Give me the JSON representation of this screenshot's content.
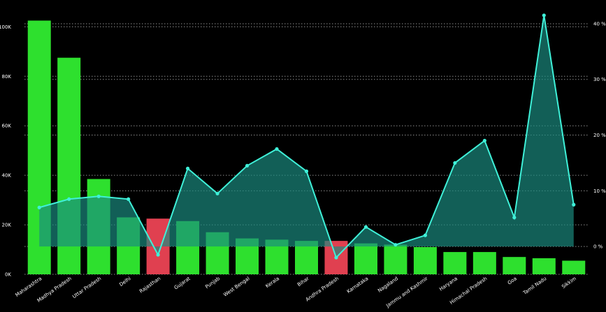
{
  "chart_data": {
    "type": "bar",
    "categories": [
      "Maharashtra",
      "Madhya Pradesh",
      "Uttar Pradesh",
      "Delhi",
      "Rajasthan",
      "Gujarat",
      "Punjab",
      "West Bengal",
      "Kerala",
      "Bihar",
      "Andhra Pradesh",
      "Karnataka",
      "Nagaland",
      "Jammu and Kashmir",
      "Haryana",
      "Himachal Pradesh",
      "Goa",
      "Tamil Nadu",
      "Sikkim"
    ],
    "series": [
      {
        "axis": "left",
        "type": "bar",
        "values": [
          102500,
          87500,
          38500,
          23000,
          22500,
          21500,
          17000,
          14500,
          14000,
          13500,
          13500,
          12500,
          12000,
          11000,
          9000,
          9000,
          7000,
          6500,
          5500
        ],
        "colors": [
          "#2ee02e",
          "#2ee02e",
          "#2ee02e",
          "#2ee02e",
          "#e04050",
          "#2ee02e",
          "#2ee02e",
          "#2ee02e",
          "#2ee02e",
          "#2ee02e",
          "#e04050",
          "#2ee02e",
          "#2ee02e",
          "#2ee02e",
          "#2ee02e",
          "#2ee02e",
          "#2ee02e",
          "#2ee02e",
          "#2ee02e"
        ]
      },
      {
        "axis": "right",
        "type": "area",
        "values": [
          7,
          8.5,
          9,
          8.5,
          -1.5,
          14,
          9.5,
          14.5,
          17.5,
          13.5,
          -2,
          3.5,
          0.3,
          2,
          15,
          19,
          5.2,
          41.5,
          7.5
        ],
        "line_color": "#3ff0d8",
        "fill_color": "#1b8c80"
      }
    ],
    "y_left": {
      "ticks": [
        "0K",
        "20K",
        "40K",
        "60K",
        "80K",
        "100K"
      ],
      "ylim": [
        0,
        108000
      ]
    },
    "y_right": {
      "ticks": [
        "0 %",
        "10 %",
        "20 %",
        "30 %",
        "40 %"
      ],
      "ylim": [
        -5,
        43
      ]
    },
    "grid": true,
    "background": "#000000"
  }
}
